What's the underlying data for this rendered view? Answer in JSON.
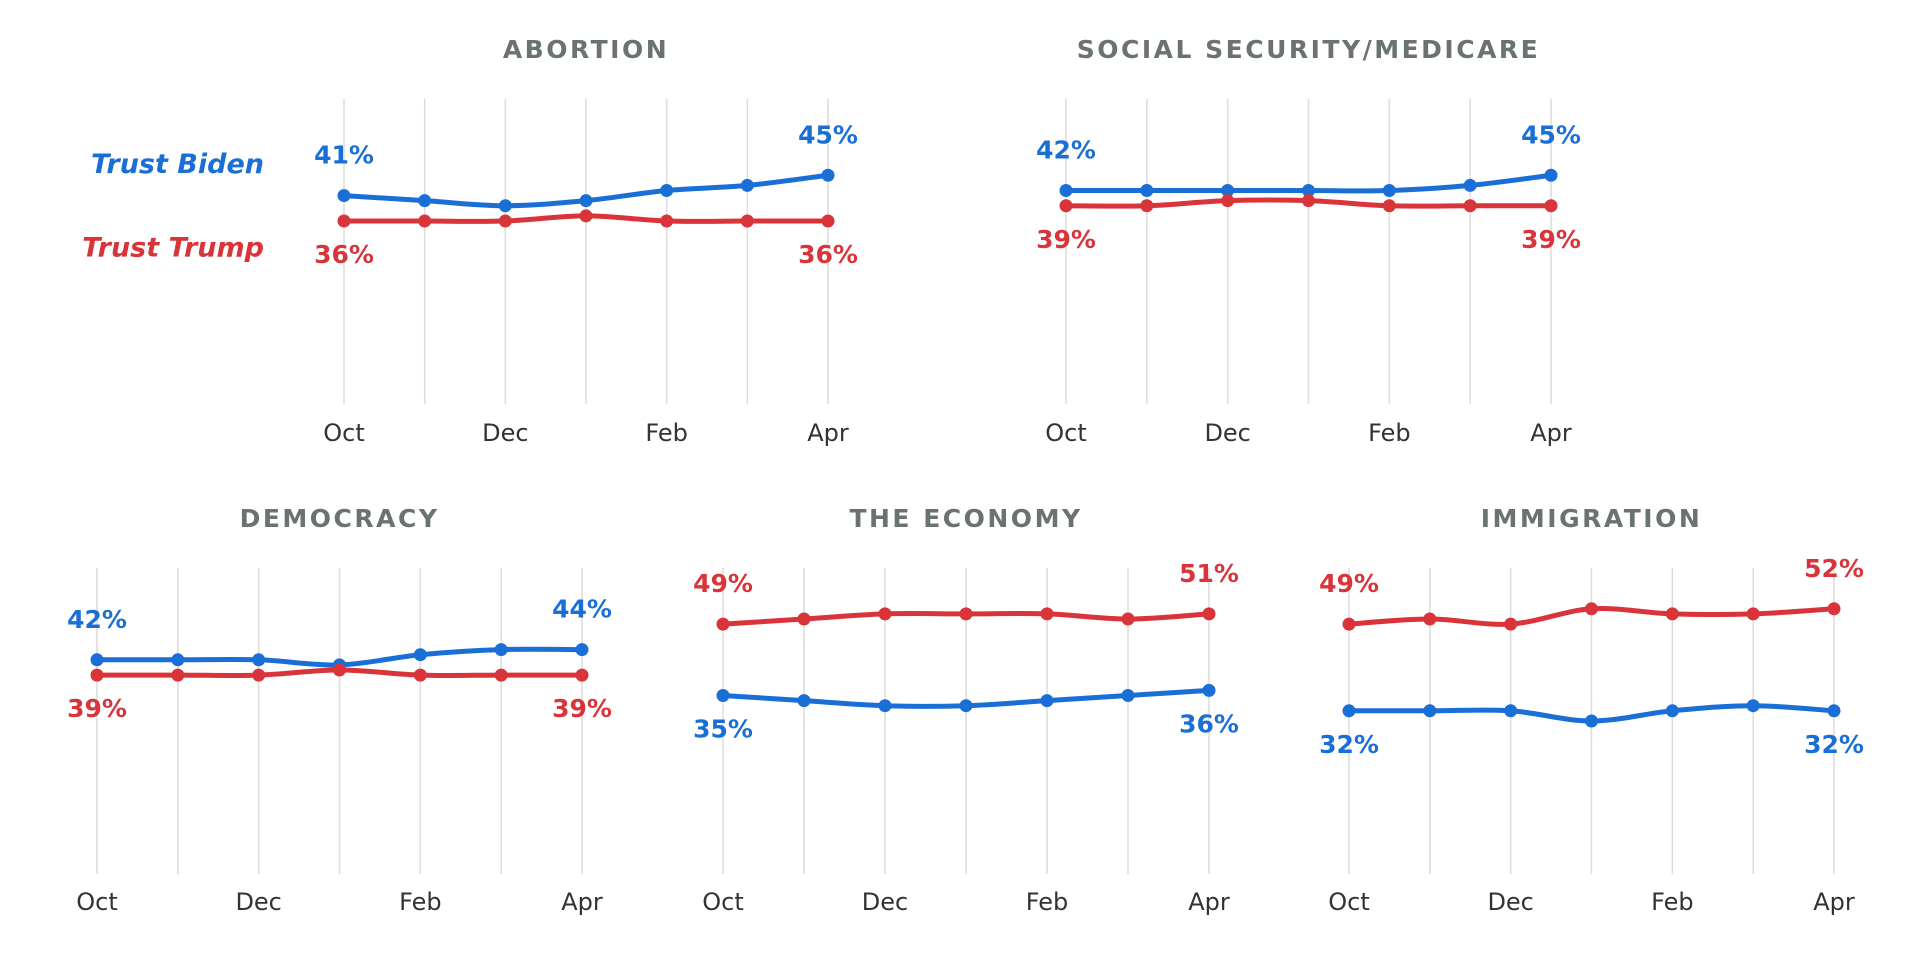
{
  "chart_data": [
    {
      "type": "line",
      "title": "ABORTION",
      "legend": true,
      "categories": [
        "Oct",
        null,
        "Dec",
        null,
        "Feb",
        null,
        "Apr"
      ],
      "ylim": [
        0,
        60
      ],
      "series": [
        {
          "name": "Trust Biden",
          "color": "#1a6fd6",
          "values": [
            41,
            40,
            39,
            40,
            42,
            43,
            45
          ],
          "value_labels": [
            "41%",
            null,
            null,
            null,
            null,
            null,
            "45%"
          ]
        },
        {
          "name": "Trust Trump",
          "color": "#d9343a",
          "values": [
            36,
            36,
            36,
            37,
            36,
            36,
            36
          ],
          "value_labels": [
            "36%",
            null,
            null,
            null,
            null,
            null,
            "36%"
          ]
        }
      ]
    },
    {
      "type": "line",
      "title": "SOCIAL SECURITY/MEDICARE",
      "categories": [
        "Oct",
        null,
        "Dec",
        null,
        "Feb",
        null,
        "Apr"
      ],
      "ylim": [
        0,
        60
      ],
      "series": [
        {
          "color": "#1a6fd6",
          "values": [
            42,
            42,
            42,
            42,
            42,
            43,
            45
          ],
          "value_labels": [
            "42%",
            null,
            null,
            null,
            null,
            null,
            "45%"
          ]
        },
        {
          "color": "#d9343a",
          "values": [
            39,
            39,
            40,
            40,
            39,
            39,
            39
          ],
          "value_labels": [
            "39%",
            null,
            null,
            null,
            null,
            null,
            "39%"
          ]
        }
      ]
    },
    {
      "type": "line",
      "title": "DEMOCRACY",
      "categories": [
        "Oct",
        null,
        "Dec",
        null,
        "Feb",
        null,
        "Apr"
      ],
      "ylim": [
        0,
        60
      ],
      "series": [
        {
          "color": "#1a6fd6",
          "values": [
            42,
            42,
            42,
            41,
            43,
            44,
            44
          ],
          "value_labels": [
            "42%",
            null,
            null,
            null,
            null,
            null,
            "44%"
          ]
        },
        {
          "color": "#d9343a",
          "values": [
            39,
            39,
            39,
            40,
            39,
            39,
            39
          ],
          "value_labels": [
            "39%",
            null,
            null,
            null,
            null,
            null,
            "39%"
          ]
        }
      ]
    },
    {
      "type": "line",
      "title": "THE ECONOMY",
      "categories": [
        "Oct",
        null,
        "Dec",
        null,
        "Feb",
        null,
        "Apr"
      ],
      "ylim": [
        0,
        60
      ],
      "series": [
        {
          "color": "#1a6fd6",
          "values": [
            35,
            34,
            33,
            33,
            34,
            35,
            36
          ],
          "value_labels": [
            "35%",
            null,
            null,
            null,
            null,
            null,
            "36%"
          ]
        },
        {
          "color": "#d9343a",
          "values": [
            49,
            50,
            51,
            51,
            51,
            50,
            51
          ],
          "value_labels": [
            "49%",
            null,
            null,
            null,
            null,
            null,
            "51%"
          ]
        }
      ]
    },
    {
      "type": "line",
      "title": "IMMIGRATION",
      "categories": [
        "Oct",
        null,
        "Dec",
        null,
        "Feb",
        null,
        "Apr"
      ],
      "ylim": [
        0,
        60
      ],
      "series": [
        {
          "color": "#1a6fd6",
          "values": [
            32,
            32,
            32,
            30,
            32,
            33,
            32
          ],
          "value_labels": [
            "32%",
            null,
            null,
            null,
            null,
            null,
            "32%"
          ]
        },
        {
          "color": "#d9343a",
          "values": [
            49,
            50,
            49,
            52,
            51,
            51,
            52
          ],
          "value_labels": [
            "49%",
            null,
            null,
            null,
            null,
            null,
            "52%"
          ]
        }
      ]
    }
  ]
}
